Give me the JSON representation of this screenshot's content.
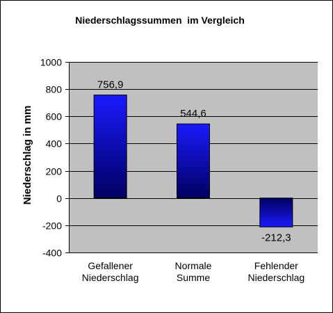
{
  "colors": {
    "plot_background": "#c0c0c0",
    "bar_top": "#1a1aff",
    "bar_bottom": "#000060",
    "gridline": "#000000"
  },
  "chart_data": {
    "type": "bar",
    "title": "Niederschlagssummen  im Vergleich",
    "xlabel": "",
    "ylabel": "Niederschlag in mm",
    "ylim": [
      -400,
      1000
    ],
    "yticks": [
      1000,
      800,
      600,
      400,
      200,
      0,
      -200,
      -400
    ],
    "grid": true,
    "legend": "none",
    "categories": [
      [
        "Gefallener",
        "Niederschlag"
      ],
      [
        "Normale",
        "Summe"
      ],
      [
        "Fehlender",
        "Niederschlag"
      ]
    ],
    "values": [
      756.9,
      544.6,
      -212.3
    ],
    "data_labels": [
      "756,9",
      "544,6",
      "-212,3"
    ]
  }
}
